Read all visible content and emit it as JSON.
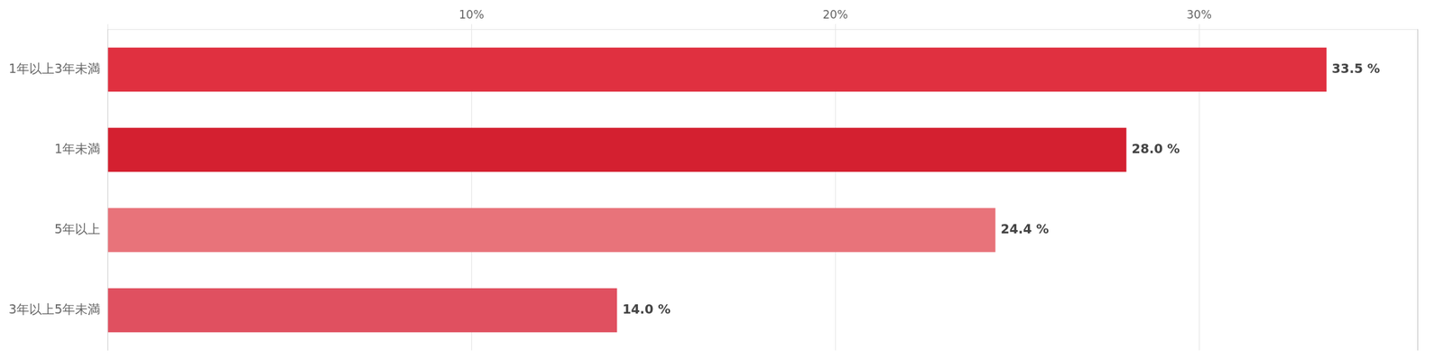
{
  "chart_data": {
    "type": "bar",
    "orientation": "horizontal",
    "categories": [
      "3年以上5年未満",
      "5年以上",
      "1年未満",
      "1年以上3年未満"
    ],
    "values": [
      14.0,
      24.4,
      28.0,
      33.5
    ],
    "value_labels": [
      "14.0 %",
      "24.4 %",
      "28.0 %",
      "33.5 %"
    ],
    "data_labels": true,
    "colors": [
      "#e05060",
      "#e8737a",
      "#d42030",
      "#e03040"
    ],
    "xlim": [
      0,
      36
    ],
    "xticks": [
      {
        "value": 0,
        "label": ""
      },
      {
        "value": 10,
        "label": "10%"
      },
      {
        "value": 20,
        "label": "20%"
      },
      {
        "value": 30,
        "label": "30%"
      }
    ],
    "grid": true
  }
}
